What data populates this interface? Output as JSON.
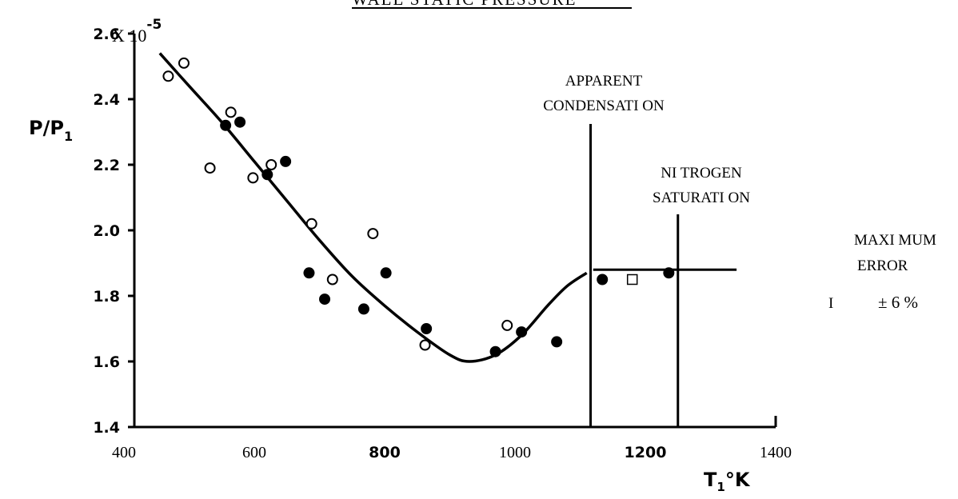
{
  "chart_data": {
    "type": "scatter",
    "title": "WALL STATIC PRESSURE",
    "xlabel": "T1 °K",
    "ylabel": "P/P1",
    "y_multiplier": "X 10-5",
    "xlim": [
      400,
      1400
    ],
    "ylim": [
      1.4,
      2.6
    ],
    "x_ticks": [
      "400",
      "600",
      "800",
      "1000",
      "1200",
      "1400"
    ],
    "y_ticks": [
      "1.4",
      "1.6",
      "1.8",
      "2.0",
      "2.2",
      "2.4",
      "2.6"
    ],
    "grid": false,
    "series": [
      {
        "marker": "open-circle",
        "points": [
          [
            468,
            2.47
          ],
          [
            492,
            2.51
          ],
          [
            532,
            2.19
          ],
          [
            564,
            2.36
          ],
          [
            598,
            2.16
          ],
          [
            626,
            2.2
          ],
          [
            688,
            2.02
          ],
          [
            720,
            1.85
          ],
          [
            782,
            1.99
          ],
          [
            862,
            1.65
          ],
          [
            988,
            1.71
          ]
        ]
      },
      {
        "marker": "filled-circle",
        "points": [
          [
            556,
            2.32
          ],
          [
            578,
            2.33
          ],
          [
            620,
            2.17
          ],
          [
            648,
            2.21
          ],
          [
            684,
            1.87
          ],
          [
            708,
            1.79
          ],
          [
            768,
            1.76
          ],
          [
            802,
            1.87
          ],
          [
            864,
            1.7
          ],
          [
            970,
            1.63
          ],
          [
            1010,
            1.69
          ],
          [
            1064,
            1.66
          ],
          [
            1134,
            1.85
          ],
          [
            1236,
            1.87
          ]
        ]
      },
      {
        "marker": "open-square",
        "points": [
          [
            1180,
            1.85
          ]
        ]
      }
    ],
    "fit_curve": [
      [
        455,
        2.54
      ],
      [
        500,
        2.44
      ],
      [
        550,
        2.33
      ],
      [
        600,
        2.21
      ],
      [
        650,
        2.09
      ],
      [
        700,
        1.97
      ],
      [
        750,
        1.86
      ],
      [
        800,
        1.77
      ],
      [
        850,
        1.69
      ],
      [
        900,
        1.62
      ],
      [
        930,
        1.6
      ],
      [
        970,
        1.62
      ],
      [
        1010,
        1.68
      ],
      [
        1050,
        1.77
      ],
      [
        1080,
        1.83
      ],
      [
        1110,
        1.87
      ]
    ],
    "reference_lines": [
      {
        "x": 1116,
        "label_lines": [
          "APPARENT",
          "CONDENSATI ON"
        ]
      },
      {
        "x": 1250,
        "label_lines": [
          "NI TROGEN",
          "SATURATI ON"
        ]
      }
    ],
    "plateau": {
      "y": 1.88,
      "x_range": [
        1120,
        1340
      ]
    },
    "error_note": {
      "lines": [
        "MAXI MUM",
        "ERROR"
      ],
      "marker": "I",
      "value": "± 6 %"
    }
  }
}
